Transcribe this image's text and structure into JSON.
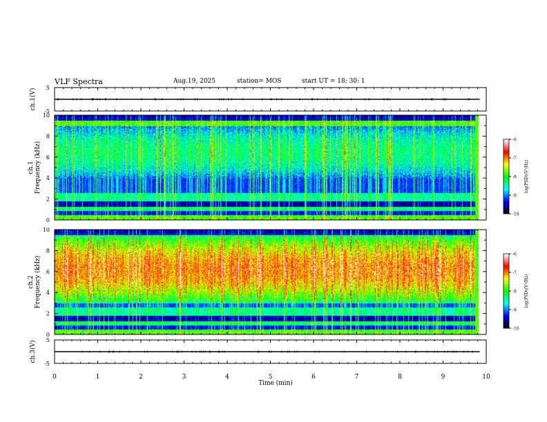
{
  "header": {
    "title": "VLF Spectra",
    "date": "Aug.19, 2025",
    "station": "station= MOS",
    "start": "start  UT  =   18: 30: 1"
  },
  "chart_data": [
    {
      "type": "line",
      "name": "ch1-waveform",
      "ylabel": "ch.1(V)",
      "ylim": [
        -5,
        5
      ],
      "yticks": [
        "5",
        "-5"
      ],
      "x_range_min": [
        0,
        9.85
      ],
      "level": 0
    },
    {
      "type": "heatmap",
      "name": "ch1-spectrogram",
      "ylabel_channel": "ch.1",
      "ylabel": "Frequency (kHz)",
      "ylim": [
        0,
        10
      ],
      "yticks": [
        "0",
        "2",
        "4",
        "6",
        "8",
        "10"
      ],
      "x_range_min": [
        0,
        9.85
      ],
      "colorbar": {
        "label": "log(PSD)(V²/Hz)",
        "range": [
          -10,
          -6
        ],
        "ticks": [
          "-6",
          "-7",
          "-8",
          "-9",
          "-10"
        ]
      },
      "band_kHz": [
        4.0,
        9.0
      ],
      "band_level": 0.4
    },
    {
      "type": "heatmap",
      "name": "ch2-spectrogram",
      "ylabel_channel": "ch.2",
      "ylabel": "Frequency (kHz)",
      "ylim": [
        0,
        10
      ],
      "yticks": [
        "0",
        "2",
        "4",
        "6",
        "8",
        "10"
      ],
      "x_range_min": [
        0,
        9.85
      ],
      "colorbar": {
        "label": "log(PSD)(V²/Hz)",
        "range": [
          -10,
          -6
        ],
        "ticks": [
          "-6",
          "-7",
          "-8",
          "-9",
          "-10"
        ]
      },
      "band_kHz": [
        3.0,
        9.5
      ],
      "band_level": 0.72
    },
    {
      "type": "line",
      "name": "ch3-waveform",
      "ylabel": "ch.3(V)",
      "ylim": [
        -5,
        5
      ],
      "yticks": [
        "5",
        "-5"
      ],
      "x_range_min": [
        0,
        9.85
      ],
      "level": 0
    }
  ],
  "xaxis": {
    "label": "Time (min)",
    "range": [
      0,
      10
    ],
    "ticks": [
      "0",
      "1",
      "2",
      "3",
      "4",
      "5",
      "6",
      "7",
      "8",
      "9",
      "10"
    ]
  },
  "colors": {
    "spec_black": "#000000",
    "spec_blue": "#0000ff",
    "spec_cyan": "#00ffff",
    "spec_green": "#00ff00",
    "spec_yellow": "#ffff00",
    "spec_red": "#ff0000",
    "spec_white": "#ffffff"
  }
}
